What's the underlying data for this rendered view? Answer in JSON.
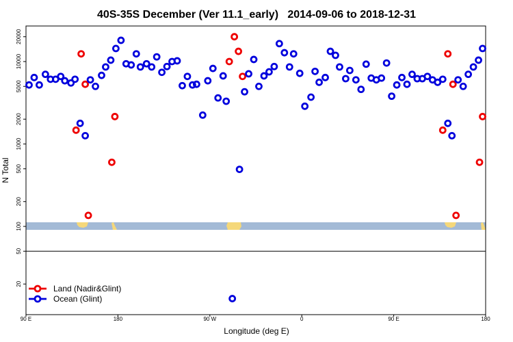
{
  "chart_data": {
    "type": "scatter",
    "title": "40S-35S December (Ver 11.1_early)   2014-09-06 to 2018-12-31",
    "x_label": "Longitude (deg E)",
    "y_label": "N Total",
    "y_log": true,
    "xlim": [
      90,
      540
    ],
    "ylim": [
      8.5,
      27000
    ],
    "xticks": [
      {
        "value": 90,
        "label": "90 E"
      },
      {
        "value": 180,
        "label": "180"
      },
      {
        "value": 270,
        "label": "90 W"
      },
      {
        "value": 360,
        "label": "0"
      },
      {
        "value": 450,
        "label": "90 E"
      },
      {
        "value": 540,
        "label": "180"
      }
    ],
    "yticks": [
      20,
      50,
      100,
      200,
      500,
      1000,
      2000,
      5000,
      10000,
      20000
    ],
    "reference_line": 50,
    "legend": "bottom-left",
    "series": [
      {
        "name": "Land (Nadir&Glint)",
        "color": "#ee0000",
        "x": [
          139,
          144,
          148,
          151,
          174,
          177,
          289,
          294,
          298,
          302,
          498,
          503,
          508,
          511,
          534,
          537
        ],
        "values": [
          1470,
          12400,
          5300,
          136,
          600,
          2150,
          10000,
          20000,
          13300,
          6600,
          1470,
          12400,
          5300,
          136,
          600,
          2150
        ]
      },
      {
        "name": "Ocean (Glint)",
        "color": "#0000dd",
        "x": [
          93,
          98,
          103,
          109,
          114,
          119,
          124,
          128,
          134,
          138,
          143,
          148,
          153,
          158,
          164,
          168,
          173,
          178,
          183,
          188,
          193,
          198,
          202,
          208,
          213,
          218,
          223,
          228,
          233,
          238,
          243,
          248,
          253,
          257,
          263,
          268,
          273,
          278,
          283,
          286,
          292,
          299,
          304,
          308,
          313,
          318,
          323,
          328,
          333,
          338,
          343,
          348,
          352,
          358,
          363,
          369,
          373,
          377,
          383,
          388,
          393,
          397,
          403,
          407,
          413,
          418,
          423,
          428,
          433,
          438,
          443,
          448,
          453,
          458,
          463,
          468,
          473,
          478,
          483,
          488,
          493,
          498,
          503,
          507,
          513,
          518,
          523,
          528,
          533,
          537
        ],
        "values": [
          5200,
          6400,
          5200,
          7000,
          6100,
          6100,
          6600,
          5850,
          5500,
          6100,
          1780,
          1260,
          6000,
          5000,
          6800,
          8600,
          10400,
          14400,
          18100,
          9400,
          9100,
          12400,
          8600,
          9400,
          8600,
          11400,
          7400,
          8700,
          10000,
          10200,
          5100,
          6600,
          5200,
          5300,
          2240,
          5850,
          8250,
          3620,
          6700,
          3300,
          13.3,
          492,
          4300,
          7100,
          10600,
          5000,
          6700,
          7500,
          8700,
          16500,
          12800,
          8600,
          12400,
          7200,
          2870,
          3700,
          7600,
          5600,
          6400,
          13300,
          11900,
          8600,
          6200,
          7800,
          6000,
          4600,
          9300,
          6300,
          6000,
          6300,
          9600,
          3800,
          5200,
          6400,
          5300,
          7000,
          6200,
          6200,
          6600,
          6000,
          5600,
          6100,
          1780,
          1260,
          6000,
          5000,
          7000,
          8600,
          10400,
          14400
        ]
      }
    ]
  }
}
